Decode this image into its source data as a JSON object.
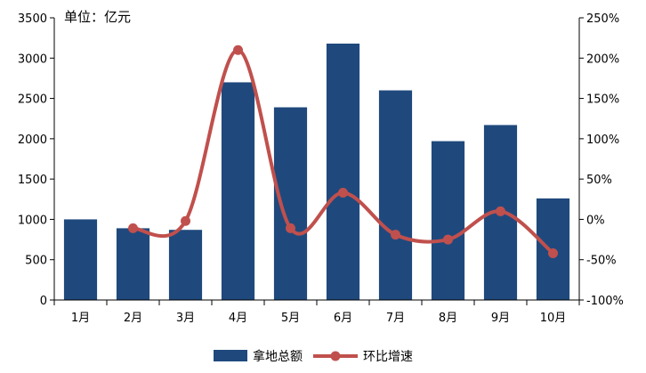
{
  "chart_data": {
    "type": "bar",
    "unit_label": "单位：亿元",
    "categories": [
      "1月",
      "2月",
      "3月",
      "4月",
      "5月",
      "6月",
      "7月",
      "8月",
      "9月",
      "10月"
    ],
    "series": [
      {
        "name": "拿地总额",
        "type": "bar",
        "axis": "left",
        "color": "#1F497D",
        "values": [
          1000,
          890,
          870,
          2700,
          2390,
          3180,
          2600,
          1970,
          2170,
          1260
        ]
      },
      {
        "name": "环比增速",
        "type": "line",
        "axis": "right",
        "color": "#C0504D",
        "values": [
          null,
          -11,
          -2,
          210,
          -11,
          33,
          -19,
          -25,
          10,
          -42
        ]
      }
    ],
    "y_left": {
      "min": 0,
      "max": 3500,
      "step": 500,
      "ticks": [
        "0",
        "500",
        "1000",
        "1500",
        "2000",
        "2500",
        "3000",
        "3500"
      ]
    },
    "y_right": {
      "min": -100,
      "max": 250,
      "step": 50,
      "ticks": [
        "-100%",
        "-50%",
        "0%",
        "50%",
        "100%",
        "150%",
        "200%",
        "250%"
      ]
    },
    "legend_position": "bottom-center",
    "grid": false
  }
}
